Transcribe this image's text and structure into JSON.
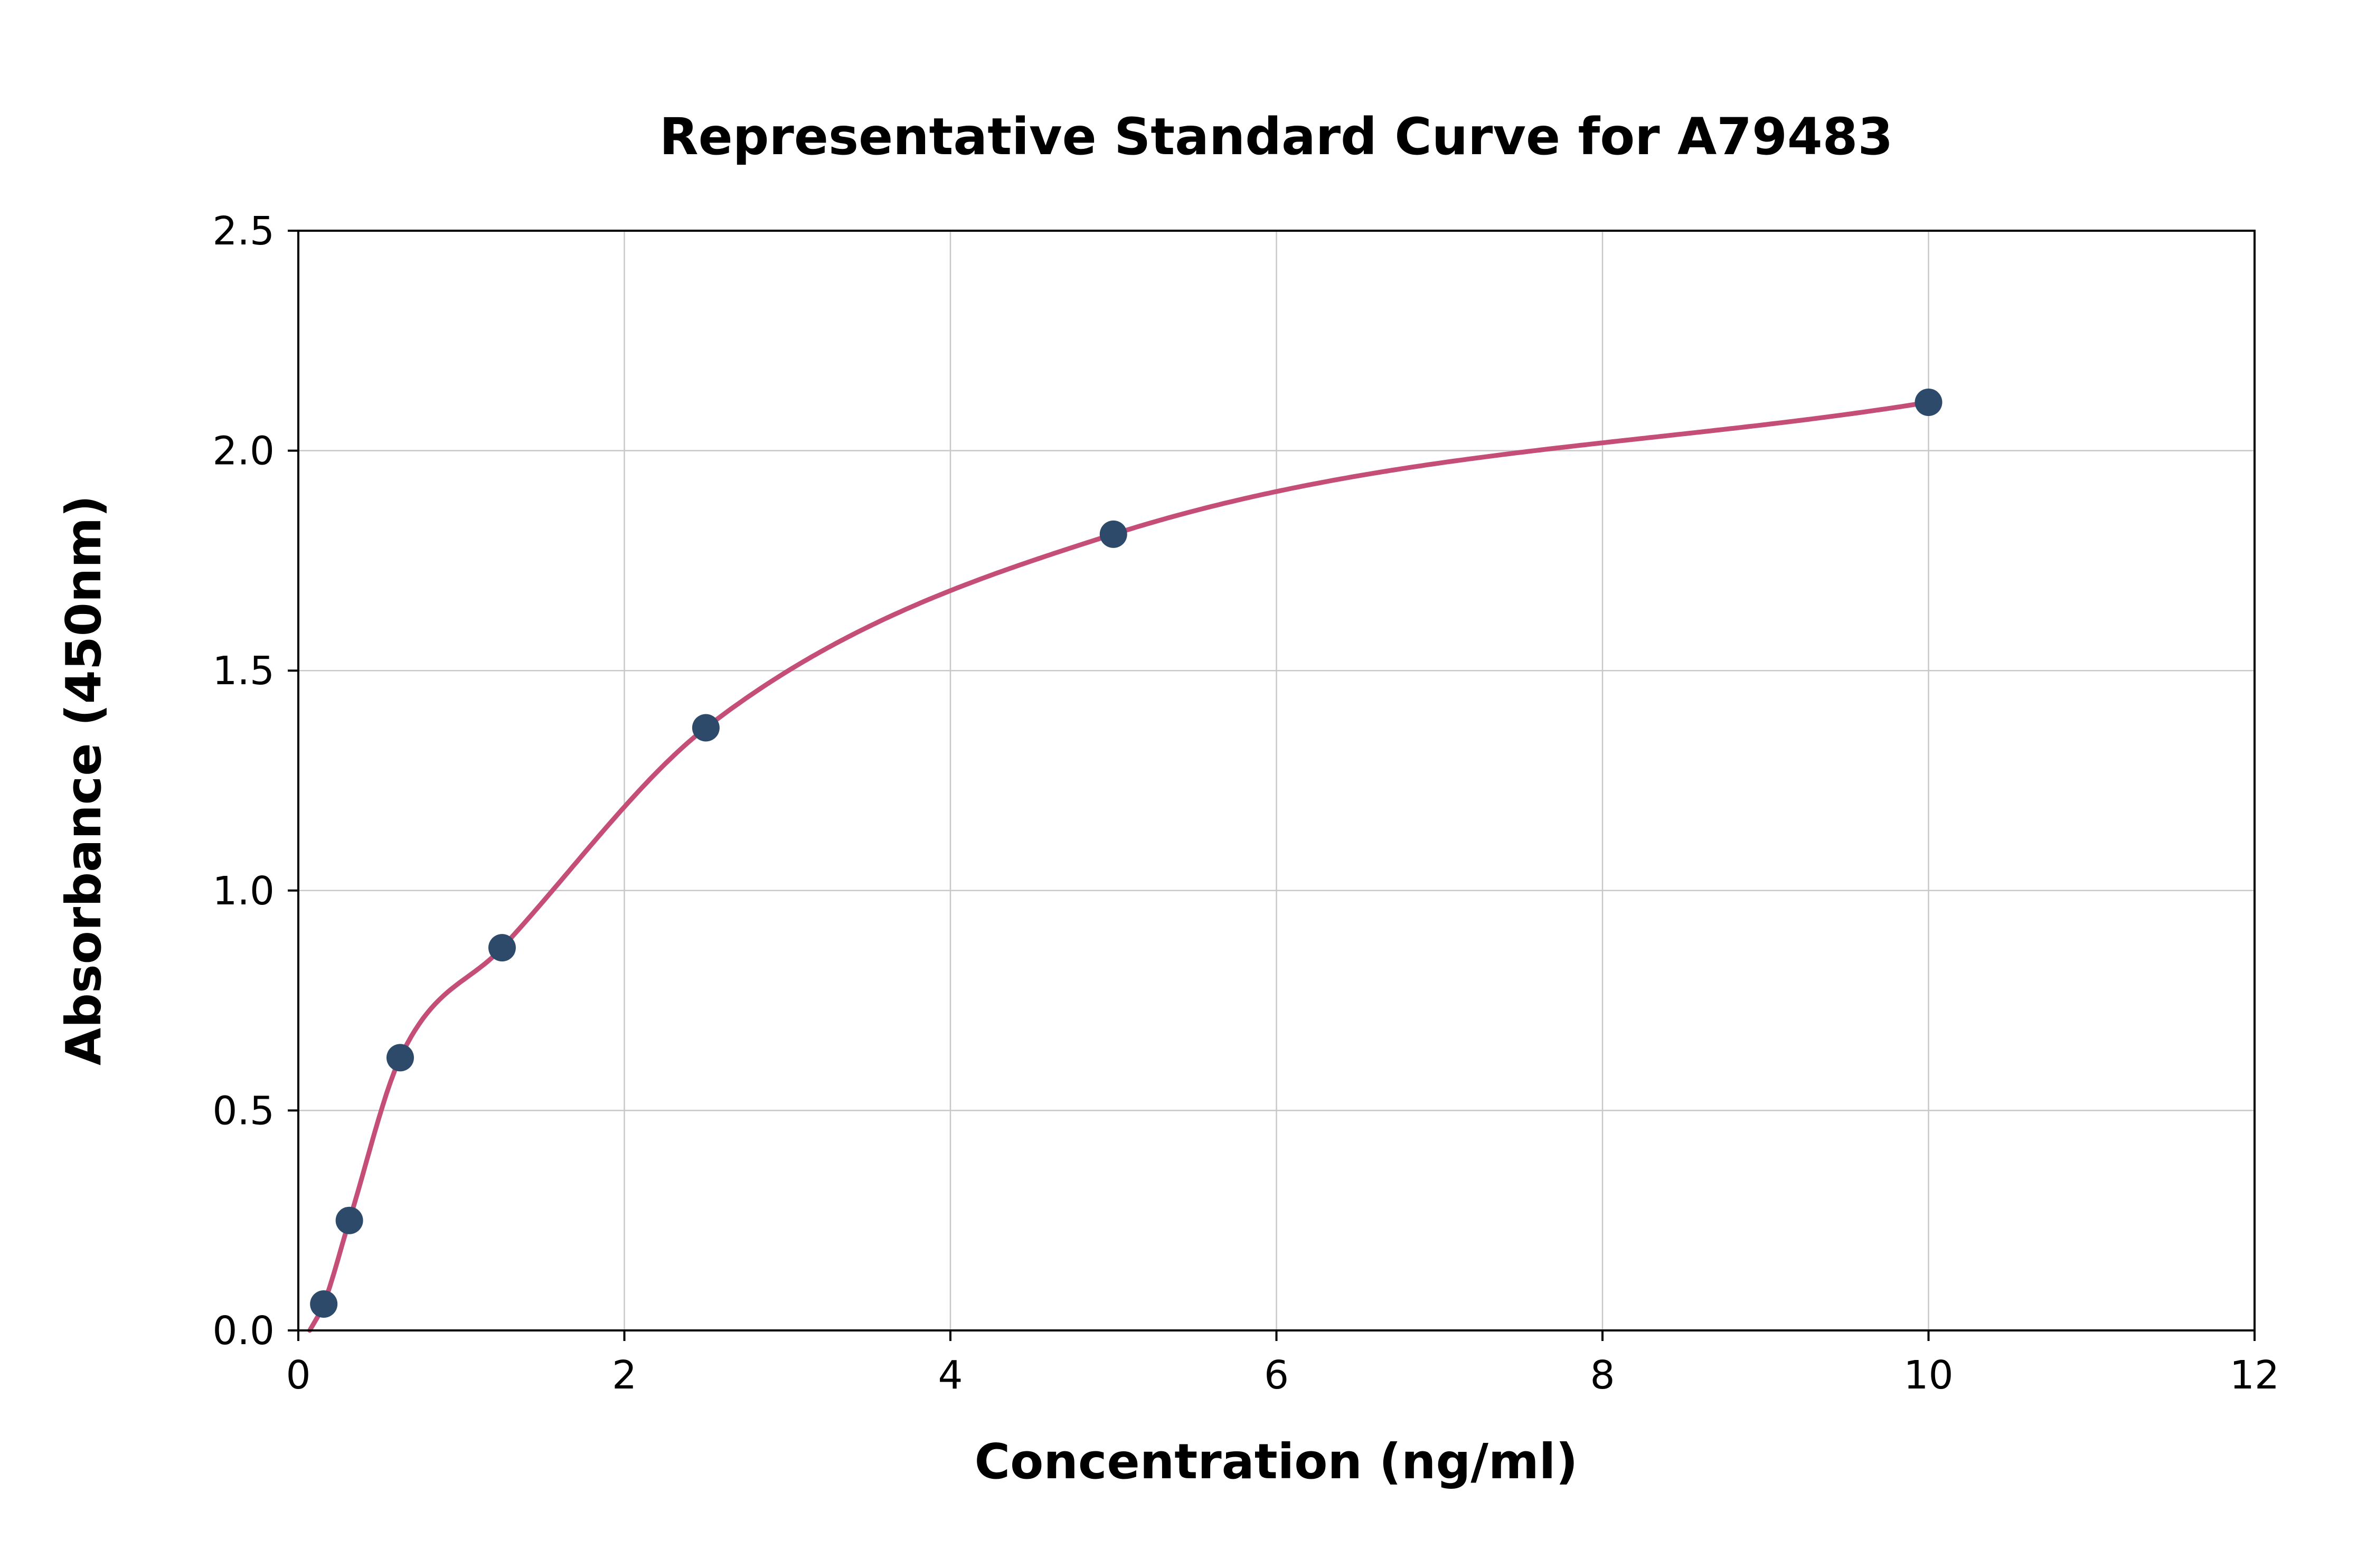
{
  "chart_data": {
    "type": "scatter",
    "title": "Representative Standard Curve for A79483",
    "xlabel": "Concentration (ng/ml)",
    "ylabel": "Absorbance (450nm)",
    "xlim": [
      0,
      12
    ],
    "ylim": [
      0,
      2.5
    ],
    "x_ticks": [
      0,
      2,
      4,
      6,
      8,
      10,
      12
    ],
    "x_tick_labels": [
      "0",
      "2",
      "4",
      "6",
      "8",
      "10",
      "12"
    ],
    "y_ticks": [
      0.0,
      0.5,
      1.0,
      1.5,
      2.0,
      2.5
    ],
    "y_tick_labels": [
      "0.0",
      "0.5",
      "1.0",
      "1.5",
      "2.0",
      "2.5"
    ],
    "grid": true,
    "legend": "none",
    "points": [
      {
        "x": 0.156,
        "y": 0.06
      },
      {
        "x": 0.313,
        "y": 0.25
      },
      {
        "x": 0.625,
        "y": 0.62
      },
      {
        "x": 1.25,
        "y": 0.87
      },
      {
        "x": 2.5,
        "y": 1.37
      },
      {
        "x": 5.0,
        "y": 1.81
      },
      {
        "x": 10.0,
        "y": 2.11
      }
    ],
    "curve": {
      "kind": "fitted-standard-curve",
      "start_anchor": {
        "x": 0.07,
        "y": 0.0
      },
      "end_x": 10.0
    },
    "colors": {
      "point": "#2e4a6b",
      "curve": "#c44e77",
      "grid": "#c8c8c8",
      "axis": "#000000",
      "background": "#ffffff"
    }
  }
}
